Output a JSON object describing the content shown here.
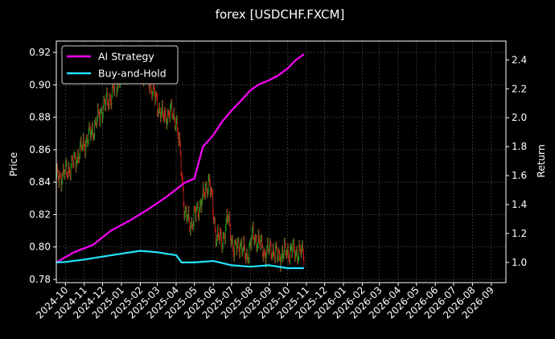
{
  "chart_data": {
    "type": "line",
    "title": "forex [USDCHF.FXCM]",
    "ylabel_left": "Price",
    "ylabel_right": "Return",
    "ylim_left": [
      0.778,
      0.927
    ],
    "ylim_right": [
      0.86,
      2.53
    ],
    "xlim": [
      "2024-09-16",
      "2026-09-25"
    ],
    "left_ticks": [
      0.78,
      0.8,
      0.82,
      0.84,
      0.86,
      0.88,
      0.9,
      0.92
    ],
    "left_tick_labels": [
      "0.78",
      "0.80",
      "0.82",
      "0.84",
      "0.86",
      "0.88",
      "0.90",
      "0.92"
    ],
    "right_ticks": [
      1.0,
      1.2,
      1.4,
      1.6,
      1.8,
      2.0,
      2.2,
      2.4
    ],
    "right_tick_labels": [
      "1.0",
      "1.2",
      "1.4",
      "1.6",
      "1.8",
      "2.0",
      "2.2",
      "2.4"
    ],
    "x_ticks": [
      "2024-10-01",
      "2024-11-01",
      "2024-12-01",
      "2025-01-01",
      "2025-02-01",
      "2025-03-01",
      "2025-04-01",
      "2025-05-01",
      "2025-06-01",
      "2025-07-01",
      "2025-08-01",
      "2025-09-01",
      "2025-10-01",
      "2025-11-01",
      "2025-12-01",
      "2026-01-01",
      "2026-02-01",
      "2026-03-01",
      "2026-04-01",
      "2026-05-01",
      "2026-06-01",
      "2026-07-01",
      "2026-08-01",
      "2026-09-01"
    ],
    "x_tick_labels": [
      "2024-10",
      "2024-11",
      "2024-12",
      "2025-01",
      "2025-02",
      "2025-03",
      "2025-04",
      "2025-05",
      "2025-06",
      "2025-07",
      "2025-08",
      "2025-09",
      "2025-10",
      "2025-11",
      "2025-12",
      "2026-01",
      "2026-02",
      "2026-03",
      "2026-04",
      "2026-05",
      "2026-06",
      "2026-07",
      "2026-08",
      "2026-09"
    ],
    "grid": true,
    "legend_position": "top-left",
    "colors": {
      "ai": "#ff00ff",
      "bh": "#22e5ff",
      "up": "#1f9e1f",
      "down": "#d21e1e",
      "grid": "#555555"
    },
    "price_series": {
      "name": "",
      "x": [
        "2024-09-16",
        "2024-10-01",
        "2024-10-15",
        "2024-11-01",
        "2024-11-15",
        "2024-12-01",
        "2024-12-15",
        "2025-01-01",
        "2025-01-15",
        "2025-02-01",
        "2025-02-15",
        "2025-03-01",
        "2025-03-10",
        "2025-03-25",
        "2025-04-01",
        "2025-04-08",
        "2025-04-15",
        "2025-04-25",
        "2025-05-05",
        "2025-05-15",
        "2025-05-25",
        "2025-06-05",
        "2025-06-15",
        "2025-06-25",
        "2025-07-05",
        "2025-07-15",
        "2025-07-25",
        "2025-08-05",
        "2025-08-15",
        "2025-08-25",
        "2025-09-05",
        "2025-09-15",
        "2025-09-25",
        "2025-10-05",
        "2025-10-15",
        "2025-10-28"
      ],
      "y": [
        0.842,
        0.846,
        0.852,
        0.864,
        0.872,
        0.886,
        0.893,
        0.907,
        0.912,
        0.909,
        0.903,
        0.888,
        0.88,
        0.883,
        0.878,
        0.856,
        0.82,
        0.814,
        0.822,
        0.83,
        0.842,
        0.808,
        0.803,
        0.818,
        0.797,
        0.803,
        0.793,
        0.807,
        0.803,
        0.796,
        0.799,
        0.794,
        0.796,
        0.798,
        0.797,
        0.796
      ]
    },
    "series": [
      {
        "name": "AI Strategy",
        "x": [
          "2024-09-16",
          "2024-10-15",
          "2024-11-15",
          "2024-12-15",
          "2025-01-15",
          "2025-02-15",
          "2025-03-15",
          "2025-04-15",
          "2025-05-01",
          "2025-05-15",
          "2025-06-01",
          "2025-06-15",
          "2025-07-01",
          "2025-07-15",
          "2025-08-01",
          "2025-08-15",
          "2025-09-01",
          "2025-09-15",
          "2025-10-01",
          "2025-10-15",
          "2025-10-28"
        ],
        "y": [
          1.0,
          1.07,
          1.12,
          1.22,
          1.29,
          1.37,
          1.45,
          1.55,
          1.58,
          1.8,
          1.88,
          1.97,
          2.05,
          2.11,
          2.19,
          2.23,
          2.26,
          2.29,
          2.34,
          2.4,
          2.44
        ]
      },
      {
        "name": "Buy-and-Hold",
        "x": [
          "2024-09-16",
          "2024-10-01",
          "2024-11-01",
          "2024-12-01",
          "2025-01-01",
          "2025-02-01",
          "2025-03-01",
          "2025-04-01",
          "2025-04-10",
          "2025-05-01",
          "2025-06-01",
          "2025-07-01",
          "2025-08-01",
          "2025-09-01",
          "2025-10-01",
          "2025-10-28"
        ],
        "y": [
          1.0,
          1.003,
          1.02,
          1.04,
          1.06,
          1.08,
          1.07,
          1.05,
          1.0,
          1.0,
          1.01,
          0.98,
          0.97,
          0.98,
          0.96,
          0.96
        ]
      }
    ]
  }
}
